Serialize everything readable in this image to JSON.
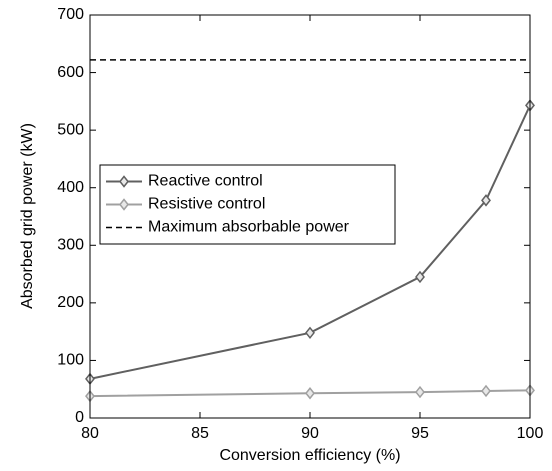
{
  "chart_data": {
    "type": "line",
    "xlabel": "Conversion efficiency (%)",
    "ylabel": "Absorbed grid power (kW)",
    "xlim": [
      80,
      100
    ],
    "xticks": [
      80,
      85,
      90,
      95,
      100
    ],
    "ylim": [
      0,
      700
    ],
    "yticks": [
      0,
      100,
      200,
      300,
      400,
      500,
      600,
      700
    ],
    "legend": "center left",
    "series": [
      {
        "name": "Reactive control",
        "color": "#606060",
        "marker": "diamond",
        "x": [
          80,
          90,
          95,
          98,
          100
        ],
        "values": [
          68,
          148,
          245,
          378,
          543
        ]
      },
      {
        "name": "Resistive control",
        "color": "#a0a0a0",
        "marker": "diamond",
        "x": [
          80,
          90,
          95,
          98,
          100
        ],
        "values": [
          38,
          43,
          45,
          47,
          48
        ]
      },
      {
        "name": "Maximum absorbable power",
        "color": "#000000",
        "dashed": true,
        "x": [
          80,
          100
        ],
        "values": [
          622,
          622
        ]
      }
    ]
  }
}
